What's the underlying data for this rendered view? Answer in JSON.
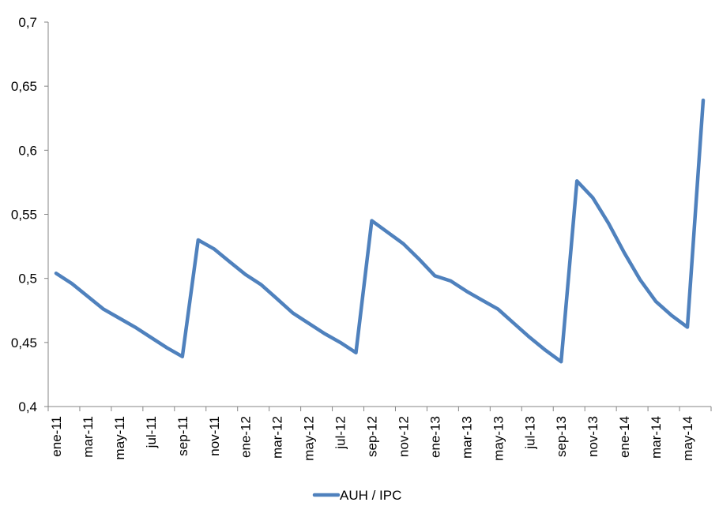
{
  "chart_data": {
    "type": "line",
    "title": "",
    "xlabel": "",
    "ylabel": "",
    "x": [
      "ene-11",
      "feb-11",
      "mar-11",
      "abr-11",
      "may-11",
      "jun-11",
      "jul-11",
      "ago-11",
      "sep-11",
      "oct-11",
      "nov-11",
      "dic-11",
      "ene-12",
      "feb-12",
      "mar-12",
      "abr-12",
      "may-12",
      "jun-12",
      "jul-12",
      "ago-12",
      "sep-12",
      "oct-12",
      "nov-12",
      "dic-12",
      "ene-13",
      "feb-13",
      "mar-13",
      "abr-13",
      "may-13",
      "jun-13",
      "jul-13",
      "ago-13",
      "sep-13",
      "oct-13",
      "nov-13",
      "dic-13",
      "ene-14",
      "feb-14",
      "mar-14",
      "abr-14",
      "may-14",
      "jun-14"
    ],
    "x_tick_labels": [
      "ene-11",
      "mar-11",
      "may-11",
      "jul-11",
      "sep-11",
      "nov-11",
      "ene-12",
      "mar-12",
      "may-12",
      "jul-12",
      "sep-12",
      "nov-12",
      "ene-13",
      "mar-13",
      "may-13",
      "jul-13",
      "sep-13",
      "nov-13",
      "ene-14",
      "mar-14",
      "may-14"
    ],
    "y_tick_labels": [
      "0,4",
      "0,45",
      "0,5",
      "0,55",
      "0,6",
      "0,65",
      "0,7"
    ],
    "ylim": [
      0.4,
      0.7
    ],
    "y_ticks": [
      0.4,
      0.45,
      0.5,
      0.55,
      0.6,
      0.65,
      0.7
    ],
    "grid": false,
    "legend_position": "bottom",
    "series": [
      {
        "name": "AUH / IPC",
        "color": "#4F81BD",
        "values": [
          0.504,
          0.496,
          0.486,
          0.476,
          0.469,
          0.462,
          0.454,
          0.446,
          0.439,
          0.53,
          0.523,
          0.513,
          0.503,
          0.495,
          0.484,
          0.473,
          0.465,
          0.457,
          0.45,
          0.442,
          0.545,
          0.536,
          0.527,
          0.515,
          0.502,
          0.498,
          0.49,
          0.483,
          0.476,
          0.465,
          0.454,
          0.444,
          0.435,
          0.576,
          0.563,
          0.543,
          0.52,
          0.499,
          0.482,
          0.471,
          0.462,
          0.639
        ]
      }
    ]
  }
}
